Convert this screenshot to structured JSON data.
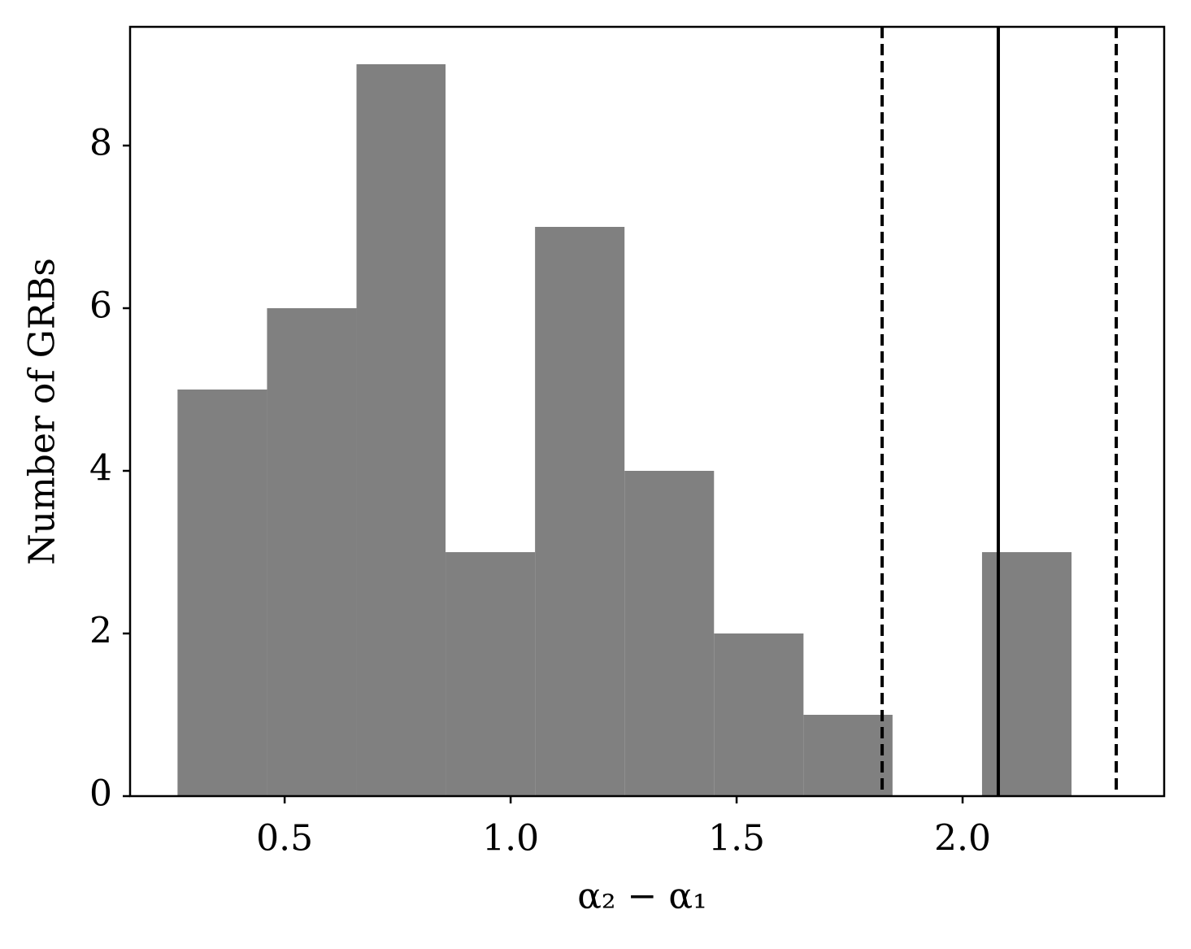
{
  "chart_data": {
    "type": "histogram",
    "x_label": "α₂ − α₁",
    "y_label": "Number of GRBs",
    "bins": [
      0.263,
      0.461,
      0.659,
      0.856,
      1.054,
      1.252,
      1.45,
      1.648,
      1.845,
      2.043,
      2.241
    ],
    "counts": [
      5,
      6,
      9,
      3,
      7,
      4,
      2,
      1,
      0,
      3
    ],
    "color": "#808080",
    "xlim": [
      0.158,
      2.446
    ],
    "ylim": [
      0,
      9.46
    ],
    "xticks": [
      0.5,
      {
        "value": 1.0,
        "label": "1.0"
      },
      1.5,
      {
        "value": 2.0,
        "label": "2.0"
      }
    ],
    "yticks": [
      0,
      2,
      4,
      6,
      8
    ],
    "vlines": [
      {
        "x": 1.822,
        "style": "dashed",
        "color": "#000000"
      },
      {
        "x": 2.079,
        "style": "solid",
        "color": "#000000"
      },
      {
        "x": 2.34,
        "style": "dashed",
        "color": "#000000"
      }
    ]
  }
}
